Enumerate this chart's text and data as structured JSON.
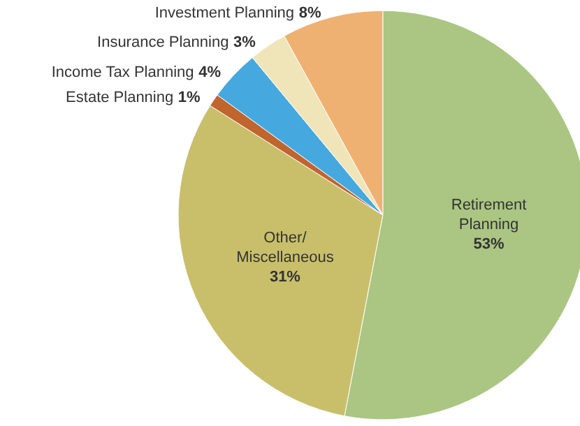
{
  "chart_data": {
    "type": "pie",
    "categories": [
      "Retirement Planning",
      "Other/ Miscellaneous",
      "Estate Planning",
      "Income Tax Planning",
      "Insurance Planning",
      "Investment Planning"
    ],
    "values": [
      53,
      31,
      1,
      4,
      3,
      8
    ],
    "colors": [
      "#aac682",
      "#c9bf6b",
      "#c0652e",
      "#45a9df",
      "#f0e5b8",
      "#efb172"
    ],
    "value_labels": [
      "53%",
      "31%",
      "1%",
      "4%",
      "3%",
      "8%"
    ]
  }
}
